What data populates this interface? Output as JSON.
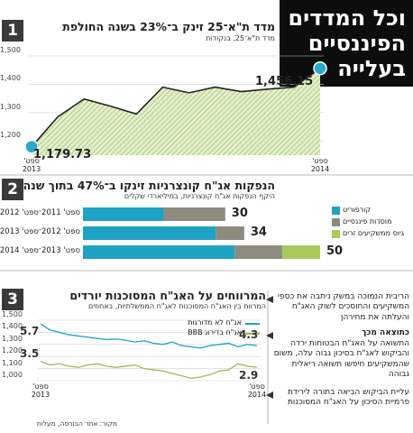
{
  "header": {
    "title": [
      "וכל המדדים",
      "הפיננסיים",
      "בעלייה"
    ]
  },
  "sections": [
    "1",
    "2",
    "3"
  ],
  "chart_data": [
    {
      "type": "area",
      "title": "מדד ת\"א־25 זינק ב־23% בשנה החולפת",
      "subtitle": "מדד ת\"א־25, בנקודות",
      "categories": [
        "ספט' 2013",
        null,
        null,
        null,
        null,
        null,
        null,
        null,
        null,
        null,
        null,
        "ספט' 2014"
      ],
      "values": [
        1179.73,
        1285,
        1348,
        1323,
        1295,
        1390,
        1370,
        1390,
        1374,
        1383,
        1390,
        1456.15
      ],
      "value_labels": [
        "1,179.73",
        null,
        null,
        null,
        null,
        null,
        null,
        null,
        null,
        null,
        null,
        "1,456.15"
      ],
      "color": "#222222",
      "fill": "#b9d98a",
      "marker_color": "#2aa8c8",
      "ylim": [
        1150,
        1500
      ],
      "yticks": [
        {
          "value": 1200,
          "label": "1,200"
        },
        {
          "value": 1300,
          "label": "1,300"
        },
        {
          "value": 1400,
          "label": "1,400"
        },
        {
          "value": 1500,
          "label": "1,500"
        }
      ],
      "grid": true
    },
    {
      "type": "stacked-bar",
      "title": "הנפקות אג\"ח קונצרניות זינקו ב־47% בתוך שנה",
      "subtitle": "היקף הנפקות אג\"ח קונצרניות, במיליארדי שקלים",
      "categories": [
        "ספט' 2011־ספט' 2012",
        "ספט' 2012־ספט' 2013",
        "ספט' 2013־ספט' 2014"
      ],
      "series": [
        {
          "name": "קורפוריט",
          "color": "#1fa3c4",
          "values": [
            17,
            28,
            32
          ]
        },
        {
          "name": "מוסדות פיננסיים",
          "color": "#8c8b7e",
          "values": [
            13,
            6,
            10
          ]
        },
        {
          "name": "גיוס ממשקיעים זרים",
          "color": "#a9c95c",
          "values": [
            0,
            0,
            8
          ]
        }
      ],
      "totals": [
        30,
        34,
        50
      ]
    },
    {
      "type": "line",
      "title": "המרווחים על האג\"ח המסוכנות יורדים",
      "subtitle": "המרווח בין האג\"ח המסוכנות לאג\"ח הממשלתיות, באחוזים",
      "categories": [
        "ספט' 2013",
        null,
        null,
        null,
        null,
        null,
        null,
        null,
        null,
        null,
        null,
        null,
        null,
        null,
        null,
        null,
        null,
        null,
        null,
        null,
        null,
        null,
        null,
        "ספט' 2014"
      ],
      "series": [
        {
          "name": "אג\"ח לא מדורגות",
          "color": "#1fa3c4",
          "start_label": "5.7",
          "end_label": "4.3",
          "values": [
            1470,
            1420,
            1400,
            1380,
            1370,
            1360,
            1350,
            1340,
            1345,
            1335,
            1320,
            1330,
            1310,
            1300,
            1320,
            1290,
            1280,
            1270,
            1290,
            1300,
            1310,
            1280,
            1300,
            1290
          ]
        },
        {
          "name": "אג\"ח בדירוג BBB",
          "color": "#9cbb55",
          "start_label": "3.5",
          "end_label": "2.9",
          "values": [
            1160,
            1130,
            1140,
            1120,
            1110,
            1130,
            1140,
            1120,
            1110,
            1120,
            1130,
            1100,
            1090,
            1080,
            1060,
            1040,
            1020,
            1030,
            1050,
            1080,
            1090,
            1140,
            1120,
            1110
          ]
        }
      ],
      "ylim": [
        1000,
        1500
      ],
      "yticks": [
        {
          "value": 1000,
          "label": "1,000"
        },
        {
          "value": 1100,
          "label": "1,100"
        },
        {
          "value": 1200,
          "label": "1,200"
        },
        {
          "value": 1300,
          "label": "1,300"
        },
        {
          "value": 1400,
          "label": "1,400"
        },
        {
          "value": 1500,
          "label": "1,500"
        }
      ],
      "grid": true
    }
  ],
  "sidebar": {
    "intro": "הריבית הנמוכה במשק ניתבה את כספי המשקיעים והחוסכים לשוק האג\"ח והעלתה את מחירהן",
    "heading": "כתוצאה מכך",
    "result": "התשואה על האג\"ח הבטוחות ירדה והביקוש לאג\"ח בסיכון גבוה עלה, משום שהמשקיעים חיפשו תשואה ריאלית גבוהה",
    "final": "עליית הביקוש הביאה בתורה לירידת פרמיית הסיכון על האג\"ח המסוכנות"
  },
  "source": "מקור: אתר הבורסה, מעלות"
}
